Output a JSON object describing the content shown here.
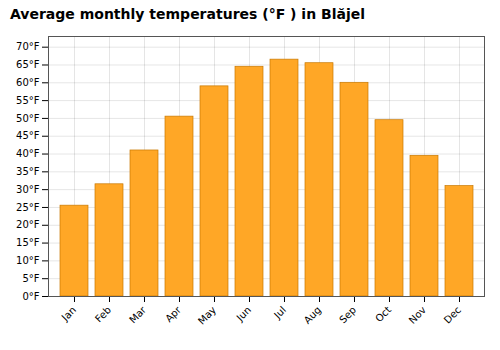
{
  "chart_data": {
    "type": "bar",
    "title": "Average monthly temperatures (°F ) in Blăjel",
    "categories": [
      "Jan",
      "Feb",
      "Mar",
      "Apr",
      "May",
      "Jun",
      "Jul",
      "Aug",
      "Sep",
      "Oct",
      "Nov",
      "Dec"
    ],
    "values": [
      25.5,
      31.5,
      41.0,
      50.5,
      59.0,
      64.5,
      66.5,
      65.5,
      60.0,
      49.5,
      39.5,
      31.0
    ],
    "color": "#FFA726",
    "ylim": [
      0,
      73
    ],
    "yticks": [
      {
        "value": 0,
        "label": "0°F"
      },
      {
        "value": 5,
        "label": "5°F"
      },
      {
        "value": 10,
        "label": "10°F"
      },
      {
        "value": 15,
        "label": "15°F"
      },
      {
        "value": 20,
        "label": "20°F"
      },
      {
        "value": 25,
        "label": "25°F"
      },
      {
        "value": 30,
        "label": "30°F"
      },
      {
        "value": 35,
        "label": "35°F"
      },
      {
        "value": 40,
        "label": "40°F"
      },
      {
        "value": 45,
        "label": "45°F"
      },
      {
        "value": 50,
        "label": "50°F"
      },
      {
        "value": 55,
        "label": "55°F"
      },
      {
        "value": 60,
        "label": "60°F"
      },
      {
        "value": 65,
        "label": "65°F"
      },
      {
        "value": 70,
        "label": "70°F"
      }
    ],
    "grid": true
  }
}
